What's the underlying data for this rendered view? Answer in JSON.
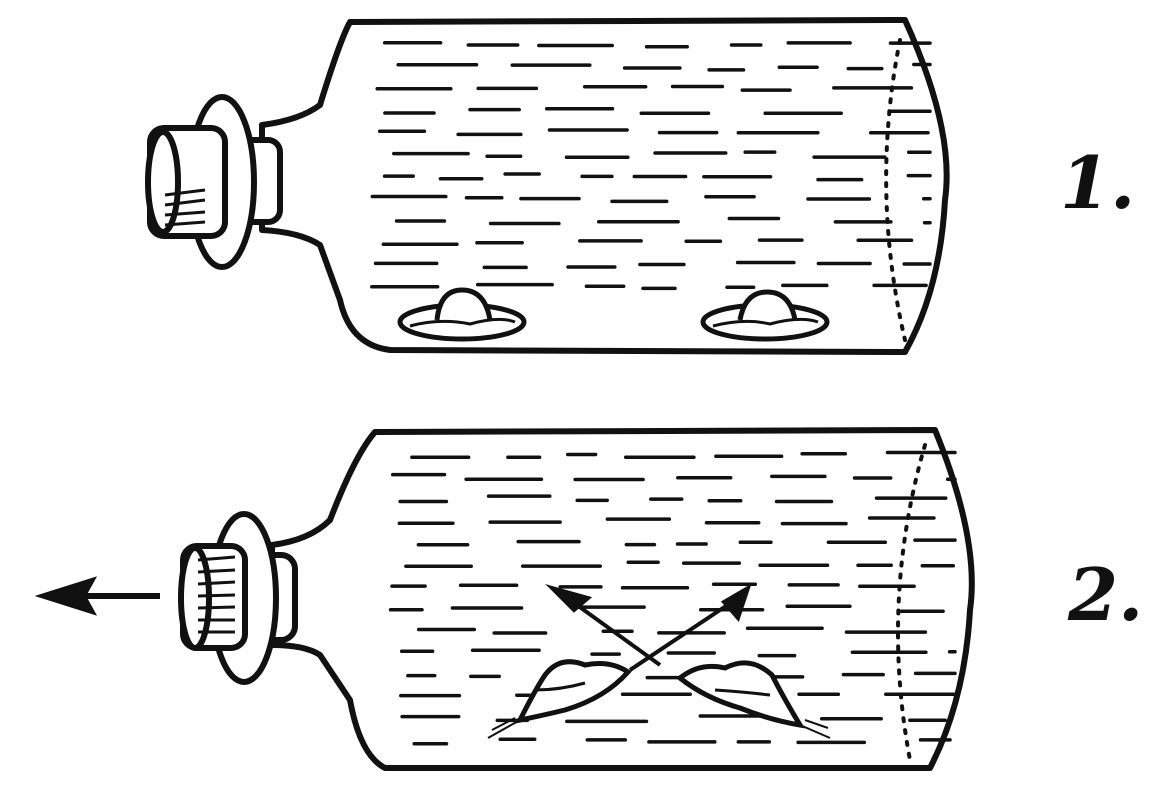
{
  "figure": {
    "panels": [
      {
        "label": "1."
      },
      {
        "label": "2."
      }
    ],
    "ink_color": "#111111",
    "background_color": "#ffffff"
  }
}
